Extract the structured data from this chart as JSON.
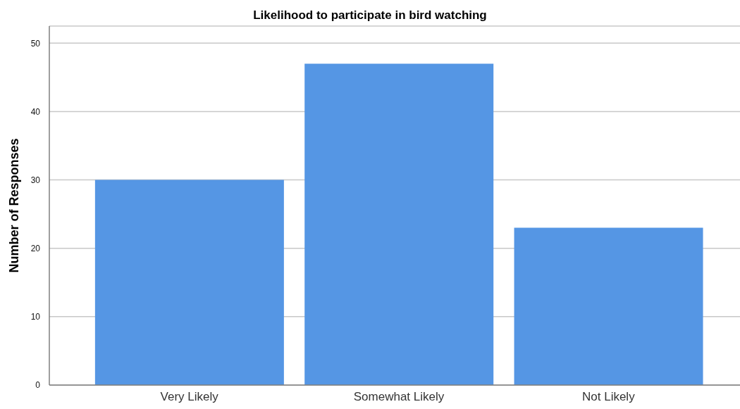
{
  "chart_data": {
    "type": "bar",
    "title": "Likelihood to participate in bird watching",
    "ylabel": "Number of Responses",
    "categories": [
      "Very Likely",
      "Somewhat Likely",
      "Not Likely"
    ],
    "values": [
      30,
      47,
      23
    ],
    "color": "#5596e4",
    "ylim": [
      0,
      52.5
    ],
    "yticks": [
      0,
      10,
      20,
      30,
      40,
      50
    ],
    "grid": "y"
  }
}
